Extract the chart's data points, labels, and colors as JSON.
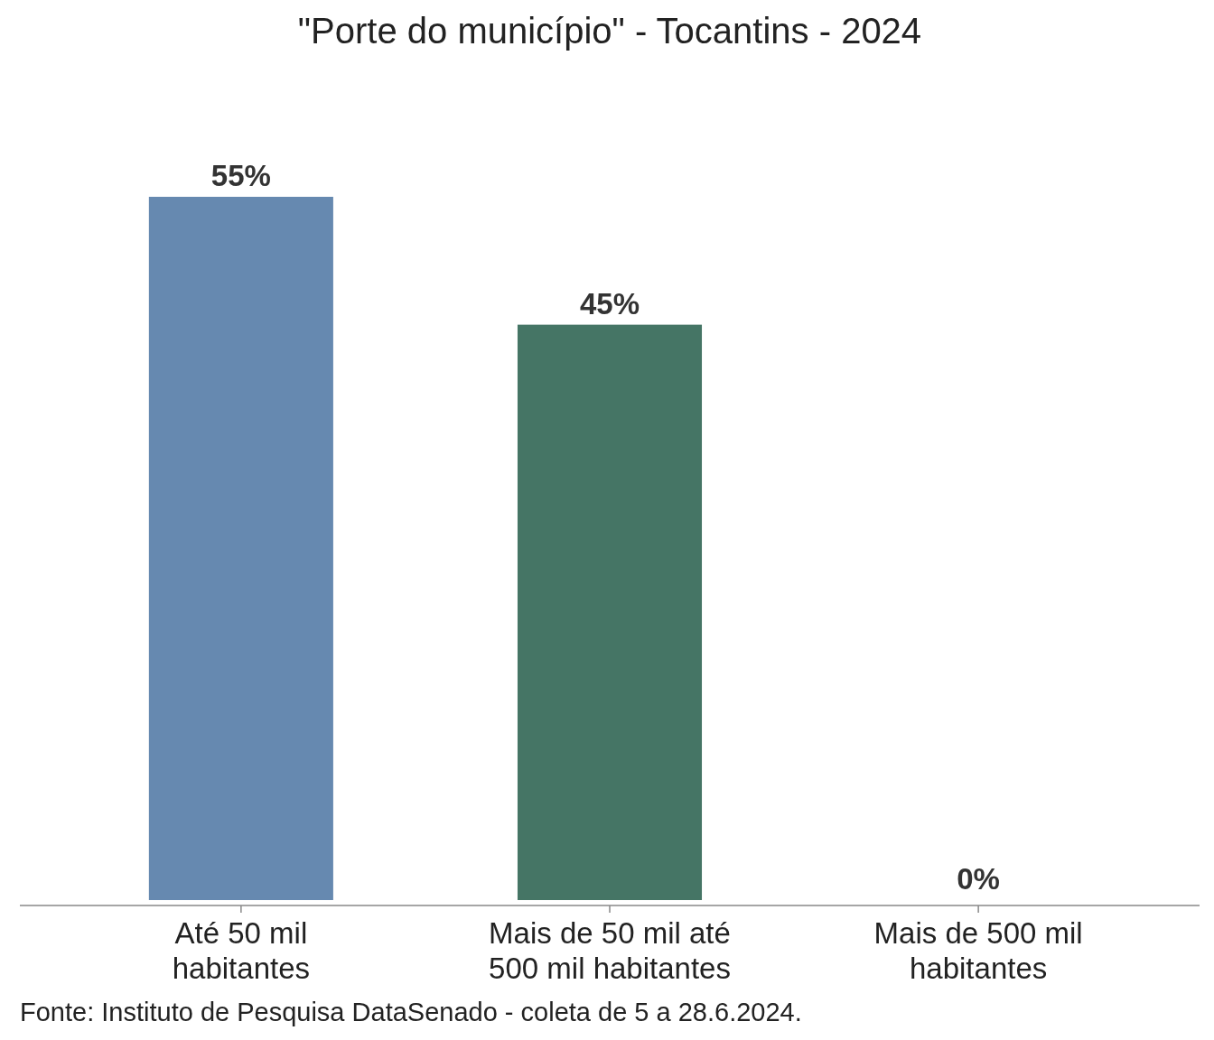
{
  "chart_data": {
    "type": "bar",
    "title": "\"Porte do município\" - Tocantins - 2024",
    "categories": [
      "Até 50 mil habitantes",
      "Mais de 50 mil até 500 mil habitantes",
      "Mais de 500 mil habitantes"
    ],
    "values": [
      55,
      45,
      0
    ],
    "colors": [
      "#6689b0",
      "#457565",
      "#8a8a8a"
    ],
    "data_labels": true,
    "value_labels": [
      "55%",
      "45%",
      "0%"
    ],
    "annotations": [
      "Fonte: Instituto de Pesquisa DataSenado - coleta de 5 a 28.6.2024."
    ]
  }
}
